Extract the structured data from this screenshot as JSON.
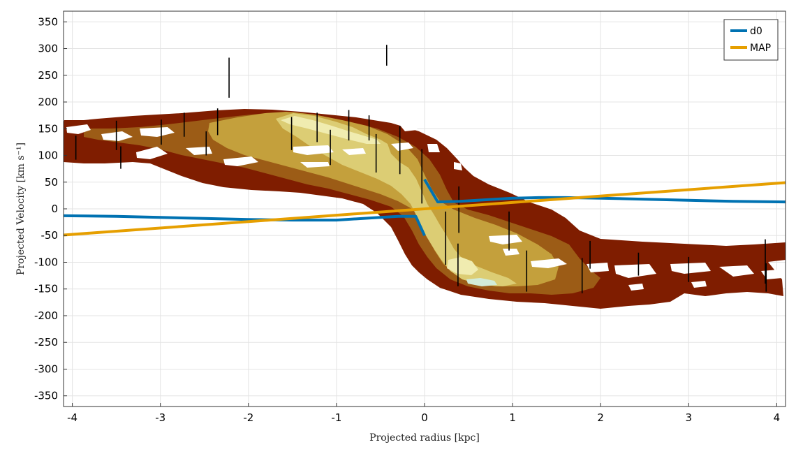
{
  "chart_data": {
    "type": "line",
    "xlabel": "Projected radius [kpc]",
    "ylabel": "Projected Velocity [km s⁻¹]",
    "xlim": [
      -4.1,
      4.1
    ],
    "ylim": [
      -370,
      370
    ],
    "xticks": [
      -4,
      -3,
      -2,
      -1,
      0,
      1,
      2,
      3,
      4
    ],
    "xtick_labels": [
      "-4",
      "-3",
      "-2",
      "-1",
      "0",
      "1",
      "2",
      "3",
      "4"
    ],
    "yticks": [
      350,
      300,
      250,
      200,
      150,
      100,
      50,
      0,
      -50,
      -100,
      -150,
      -200,
      -250,
      -300,
      -350
    ],
    "ytick_labels": [
      "350",
      "300",
      "250",
      "200",
      "150",
      "100",
      "50",
      "0",
      "-50",
      "-100",
      "-150",
      "-200",
      "-250",
      "-300",
      "-350"
    ],
    "grid": true,
    "legend_position": "top-right",
    "colors": {
      "d0": "#0072b2",
      "MAP": "#e69f00",
      "contour_levels": [
        "#7f1d00",
        "#9c5c16",
        "#c4a03c",
        "#dccd74",
        "#f0ecb0",
        "#d2ecd8"
      ]
    },
    "series": [
      {
        "name": "d0",
        "color": "#0072b2",
        "segments": [
          [
            [
              -4.1,
              -13
            ],
            [
              -3.5,
              -14
            ],
            [
              -3.0,
              -16
            ],
            [
              -2.5,
              -18
            ],
            [
              -2.0,
              -20
            ],
            [
              -1.5,
              -21
            ],
            [
              -1.0,
              -21
            ],
            [
              -0.6,
              -17
            ],
            [
              -0.3,
              -14
            ],
            [
              -0.1,
              -14
            ],
            [
              0.0,
              -50
            ]
          ],
          [
            [
              0.0,
              55
            ],
            [
              0.15,
              13
            ],
            [
              0.4,
              14
            ],
            [
              0.7,
              17
            ],
            [
              1.0,
              20
            ],
            [
              1.3,
              21
            ],
            [
              1.6,
              21
            ],
            [
              2.0,
              20
            ],
            [
              2.5,
              18
            ],
            [
              3.0,
              16
            ],
            [
              3.5,
              14
            ],
            [
              4.1,
              13
            ]
          ]
        ]
      },
      {
        "name": "MAP",
        "color": "#e69f00",
        "segments": [
          [
            [
              -4.1,
              -49
            ],
            [
              4.1,
              49
            ]
          ]
        ]
      }
    ],
    "error_bars": [
      {
        "x": -3.96,
        "y_low": 92,
        "y_high": 137
      },
      {
        "x": -3.5,
        "y_low": 110,
        "y_high": 165
      },
      {
        "x": -3.45,
        "y_low": 75,
        "y_high": 117
      },
      {
        "x": -2.99,
        "y_low": 120,
        "y_high": 167
      },
      {
        "x": -2.73,
        "y_low": 135,
        "y_high": 180
      },
      {
        "x": -2.48,
        "y_low": 100,
        "y_high": 145
      },
      {
        "x": -2.35,
        "y_low": 138,
        "y_high": 188
      },
      {
        "x": -2.22,
        "y_low": 208,
        "y_high": 283
      },
      {
        "x": -1.51,
        "y_low": 110,
        "y_high": 172
      },
      {
        "x": -1.22,
        "y_low": 125,
        "y_high": 180
      },
      {
        "x": -1.07,
        "y_low": 82,
        "y_high": 148
      },
      {
        "x": -0.86,
        "y_low": 128,
        "y_high": 185
      },
      {
        "x": -0.63,
        "y_low": 128,
        "y_high": 175
      },
      {
        "x": -0.55,
        "y_low": 68,
        "y_high": 140
      },
      {
        "x": -0.43,
        "y_low": 268,
        "y_high": 307
      },
      {
        "x": -0.28,
        "y_low": 65,
        "y_high": 155
      },
      {
        "x": -0.03,
        "y_low": 10,
        "y_high": 112
      },
      {
        "x": 0.24,
        "y_low": -105,
        "y_high": -5
      },
      {
        "x": 0.38,
        "y_low": -145,
        "y_high": -65
      },
      {
        "x": 0.39,
        "y_low": -45,
        "y_high": 42
      },
      {
        "x": 0.96,
        "y_low": -78,
        "y_high": -5
      },
      {
        "x": 1.16,
        "y_low": -155,
        "y_high": -78
      },
      {
        "x": 1.79,
        "y_low": -158,
        "y_high": -92
      },
      {
        "x": 1.88,
        "y_low": -112,
        "y_high": -60
      },
      {
        "x": 2.43,
        "y_low": -125,
        "y_high": -82
      },
      {
        "x": 3.0,
        "y_low": -137,
        "y_high": -90
      },
      {
        "x": 3.87,
        "y_low": -140,
        "y_high": -57
      },
      {
        "x": 3.88,
        "y_low": -155,
        "y_high": -102
      }
    ]
  }
}
